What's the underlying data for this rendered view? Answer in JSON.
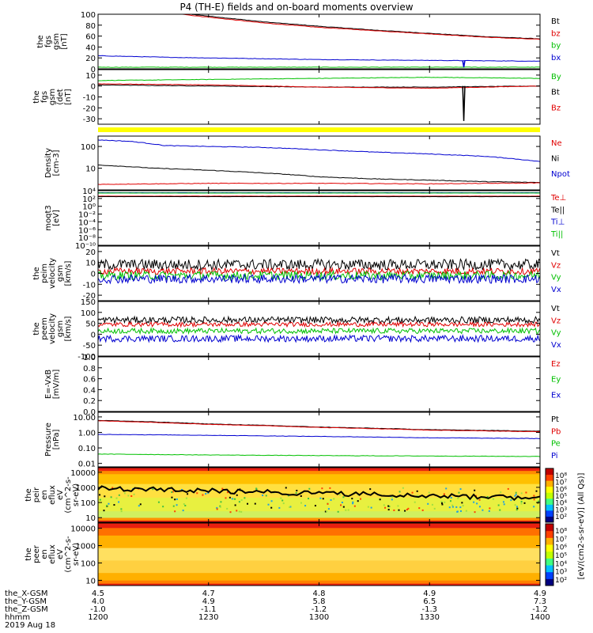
{
  "title": "P4 (TH-E) fields and on-board moments overview",
  "colors": {
    "black": "#000000",
    "red": "#e00000",
    "green": "#00c000",
    "blue": "#0000d0",
    "yellow": "#ffff00"
  },
  "chart_data": [
    {
      "type": "line",
      "ylabel": [
        "the",
        "fgs",
        "gsm",
        "[nT]"
      ],
      "ylim": [
        0,
        100
      ],
      "yticks": [
        0,
        20,
        40,
        60,
        80,
        100
      ],
      "legend": [
        {
          "name": "Bt",
          "color": "black"
        },
        {
          "name": "bz",
          "color": "red"
        },
        {
          "name": "by",
          "color": "green"
        },
        {
          "name": "bx",
          "color": "blue"
        }
      ],
      "series": [
        {
          "name": "Bt",
          "color": "black",
          "x": [
            12.0,
            12.42,
            12.75,
            13.0,
            13.25,
            13.5,
            13.75,
            14.0
          ],
          "y": [
            126,
            100,
            86,
            78,
            71,
            65,
            59,
            55
          ]
        },
        {
          "name": "bz",
          "color": "red",
          "x": [
            12.0,
            12.42,
            12.75,
            13.0,
            13.25,
            13.5,
            13.75,
            14.0
          ],
          "y": [
            123,
            98,
            84,
            76,
            70,
            64,
            58,
            54
          ]
        },
        {
          "name": "by",
          "color": "green",
          "x": [
            12.0,
            14.0
          ],
          "y": [
            3,
            3
          ]
        },
        {
          "name": "bx",
          "color": "blue",
          "x": [
            12.0,
            12.33,
            12.67,
            13.0,
            13.33,
            13.67,
            14.0
          ],
          "y": [
            24,
            21,
            19,
            17,
            16,
            15,
            14
          ]
        }
      ]
    },
    {
      "type": "line",
      "ylabel": [
        "the",
        "fgs",
        "gsm",
        "(det",
        "[nT]"
      ],
      "ylim": [
        -35,
        15
      ],
      "yticks": [
        -30,
        -20,
        -10,
        0,
        10
      ],
      "legend": [
        {
          "name": "By",
          "color": "green"
        },
        {
          "name": "Bt",
          "color": "black"
        },
        {
          "name": "Bz",
          "color": "red"
        }
      ],
      "series": [
        {
          "name": "By",
          "color": "green",
          "x": [
            12.0,
            12.5,
            13.0,
            13.5,
            14.0
          ],
          "y": [
            5,
            6,
            7,
            8,
            7
          ]
        },
        {
          "name": "Bt",
          "color": "black",
          "x": [
            12.0,
            12.5,
            13.0,
            13.5,
            14.0
          ],
          "y": [
            1,
            0,
            -1,
            -1,
            0
          ]
        },
        {
          "name": "Bz",
          "color": "red",
          "x": [
            12.0,
            12.5,
            13.0,
            13.5,
            14.0
          ],
          "y": [
            2,
            1,
            -1,
            -2,
            0
          ]
        }
      ]
    },
    {
      "type": "line",
      "ylabel": [
        "Density",
        "[cm-3]"
      ],
      "yscale": "log",
      "ylim": [
        1,
        300
      ],
      "yticks": [
        10,
        100
      ],
      "ytick_labels": [
        "10",
        "100"
      ],
      "legend": [
        {
          "name": "Ne",
          "color": "red"
        },
        {
          "name": "Ni",
          "color": "black"
        },
        {
          "name": "Npot",
          "color": "blue"
        }
      ],
      "series": [
        {
          "name": "Npot",
          "color": "blue",
          "x": [
            12.0,
            12.15,
            12.3,
            12.5,
            12.75,
            13.0,
            13.25,
            13.5,
            13.75,
            14.0
          ],
          "y": [
            200,
            170,
            110,
            100,
            90,
            70,
            55,
            45,
            35,
            20
          ]
        },
        {
          "name": "Ni",
          "color": "black",
          "x": [
            12.0,
            12.25,
            12.5,
            12.75,
            13.0,
            13.25,
            13.5,
            13.75,
            14.0
          ],
          "y": [
            14,
            10,
            8,
            6,
            4,
            3.2,
            2.8,
            2.4,
            2.2
          ]
        },
        {
          "name": "Ne",
          "color": "red",
          "x": [
            12.0,
            12.5,
            13.0,
            13.5,
            14.0
          ],
          "y": [
            1.8,
            2,
            2,
            1.9,
            2.1
          ]
        }
      ]
    },
    {
      "type": "line",
      "ylabel": [
        "moqt3",
        "[eV]"
      ],
      "yscale": "log",
      "ylim": [
        1e-10,
        10000.0
      ],
      "yticks": [
        10000.0,
        100.0,
        1,
        0.01,
        0.0001,
        1e-06,
        1e-08,
        1e-10
      ],
      "ytick_labels": [
        "10⁴",
        "10²",
        "10⁰",
        "10⁻²",
        "10⁻⁴",
        "10⁻⁶",
        "10⁻⁸",
        "10⁻¹⁰"
      ],
      "legend": [
        {
          "name": "Te⊥",
          "color": "red"
        },
        {
          "name": "Te||",
          "color": "black"
        },
        {
          "name": "Ti⊥",
          "color": "blue"
        },
        {
          "name": "Ti||",
          "color": "green"
        }
      ],
      "series": [
        {
          "name": "Ti⊥",
          "color": "blue",
          "x": [
            12.0,
            14.0
          ],
          "y": [
            3000,
            3000
          ]
        },
        {
          "name": "Ti||",
          "color": "green",
          "x": [
            12.0,
            14.0
          ],
          "y": [
            2500,
            2500
          ]
        },
        {
          "name": "Te⊥",
          "color": "red",
          "x": [
            12.0,
            14.0
          ],
          "y": [
            400,
            400
          ]
        },
        {
          "name": "Te||",
          "color": "black",
          "x": [
            12.0,
            14.0
          ],
          "y": [
            300,
            300
          ]
        }
      ]
    },
    {
      "type": "line",
      "ylabel": [
        "the",
        "peim",
        "velocity",
        "gsm",
        "[km/s]"
      ],
      "ylim": [
        -25,
        25
      ],
      "yticks": [
        -20,
        -10,
        0,
        10,
        20
      ],
      "legend": [
        {
          "name": "Vt",
          "color": "black"
        },
        {
          "name": "Vz",
          "color": "red"
        },
        {
          "name": "Vy",
          "color": "green"
        },
        {
          "name": "Vx",
          "color": "blue"
        }
      ],
      "series": [
        {
          "name": "Vt",
          "color": "black",
          "base": 8,
          "noise": 5
        },
        {
          "name": "Vz",
          "color": "red",
          "base": 2,
          "noise": 3
        },
        {
          "name": "Vy",
          "color": "green",
          "base": -2,
          "noise": 4
        },
        {
          "name": "Vx",
          "color": "blue",
          "base": -5,
          "noise": 4
        }
      ]
    },
    {
      "type": "line",
      "ylabel": [
        "the",
        "peem",
        "velocity",
        "gsm",
        "[km/s]"
      ],
      "ylim": [
        -100,
        150
      ],
      "yticks": [
        -100,
        -50,
        0,
        50,
        100,
        150
      ],
      "legend": [
        {
          "name": "Vt",
          "color": "black"
        },
        {
          "name": "Vz",
          "color": "red"
        },
        {
          "name": "Vy",
          "color": "green"
        },
        {
          "name": "Vx",
          "color": "blue"
        }
      ],
      "series": [
        {
          "name": "Vt",
          "color": "black",
          "base": 65,
          "noise": 15
        },
        {
          "name": "Vz",
          "color": "red",
          "base": 45,
          "noise": 10
        },
        {
          "name": "Vy",
          "color": "green",
          "base": 15,
          "noise": 12
        },
        {
          "name": "Vx",
          "color": "blue",
          "base": -20,
          "noise": 15
        }
      ]
    },
    {
      "type": "line",
      "ylabel": [
        "E=-VxB",
        "[mV/m]"
      ],
      "ylim": [
        0,
        1
      ],
      "yticks": [
        0,
        0.2,
        0.4,
        0.6,
        0.8,
        1.0
      ],
      "ytick_labels": [
        "0.0",
        "0.2",
        "0.4",
        "0.6",
        "0.8",
        "1.0"
      ],
      "legend": [
        {
          "name": "Ez",
          "color": "red"
        },
        {
          "name": "Ey",
          "color": "green"
        },
        {
          "name": "Ex",
          "color": "blue"
        }
      ],
      "series": []
    },
    {
      "type": "line",
      "ylabel": [
        "Pressure",
        "[nPa]"
      ],
      "yscale": "log",
      "ylim": [
        0.006,
        20
      ],
      "yticks": [
        10,
        1,
        0.1,
        0.01
      ],
      "ytick_labels": [
        "10.00",
        "1.00",
        "0.10",
        "0.01"
      ],
      "legend": [
        {
          "name": "Pt",
          "color": "black"
        },
        {
          "name": "Pb",
          "color": "red"
        },
        {
          "name": "Pe",
          "color": "green"
        },
        {
          "name": "Pi",
          "color": "blue"
        }
      ],
      "series": [
        {
          "name": "Pt",
          "color": "black",
          "x": [
            12.0,
            12.5,
            13.0,
            13.5,
            14.0
          ],
          "y": [
            6,
            3.5,
            2.2,
            1.5,
            1.2
          ]
        },
        {
          "name": "Pb",
          "color": "red",
          "x": [
            12.0,
            12.5,
            13.0,
            13.5,
            14.0
          ],
          "y": [
            5.6,
            3.3,
            2.1,
            1.4,
            1.1
          ]
        },
        {
          "name": "Pi",
          "color": "blue",
          "x": [
            12.0,
            12.5,
            13.0,
            13.5,
            14.0
          ],
          "y": [
            0.75,
            0.65,
            0.55,
            0.45,
            0.4
          ]
        },
        {
          "name": "Pe",
          "color": "green",
          "x": [
            12.0,
            12.5,
            13.0,
            13.5,
            14.0
          ],
          "y": [
            0.04,
            0.035,
            0.032,
            0.03,
            0.028
          ]
        }
      ]
    },
    {
      "type": "heatmap",
      "ylabel": [
        "the",
        "peir",
        "en",
        "eflux",
        "eV",
        "(cm^2-s-",
        "sr-eV)"
      ],
      "yscale": "log",
      "ylim": [
        5,
        20000
      ],
      "yticks": [
        10,
        100,
        1000,
        10000
      ],
      "ytick_labels": [
        "10",
        "100",
        "1000",
        "10000"
      ]
    },
    {
      "type": "heatmap",
      "ylabel": [
        "the",
        "peer",
        "en",
        "eflux",
        "eV",
        "(cm^2-s-",
        "sr-eV)"
      ],
      "yscale": "log",
      "ylim": [
        5,
        20000
      ],
      "yticks": [
        10,
        100,
        1000,
        10000
      ],
      "ytick_labels": [
        "10",
        "100",
        "1000",
        "10000"
      ]
    }
  ],
  "colorbar": {
    "top": {
      "tick_labels": [
        "10⁸",
        "10⁷",
        "10⁶",
        "10⁵",
        "10⁴",
        "10³",
        "10²"
      ]
    },
    "bottom": {
      "tick_labels": [
        "10⁸",
        "10⁷",
        "10⁶",
        "10⁵",
        "10⁴",
        "10³",
        "10²"
      ]
    },
    "label": "[eV/(cm2-s-sr-eV)] (All Qs)]"
  },
  "xaxis": {
    "rows": [
      {
        "label": "the_X-GSM",
        "values": [
          "4.5",
          "4.7",
          "4.8",
          "4.9",
          "4.9"
        ]
      },
      {
        "label": "the_Y-GSM",
        "values": [
          "4.0",
          "4.9",
          "5.8",
          "6.5",
          "7.3"
        ]
      },
      {
        "label": "the_Z-GSM",
        "values": [
          "-1.0",
          "-1.1",
          "-1.2",
          "-1.3",
          "-1.2"
        ]
      },
      {
        "label": "hhmm",
        "values": [
          "1200",
          "1230",
          "1300",
          "1330",
          "1400"
        ]
      }
    ],
    "date": "2019 Aug 18"
  }
}
